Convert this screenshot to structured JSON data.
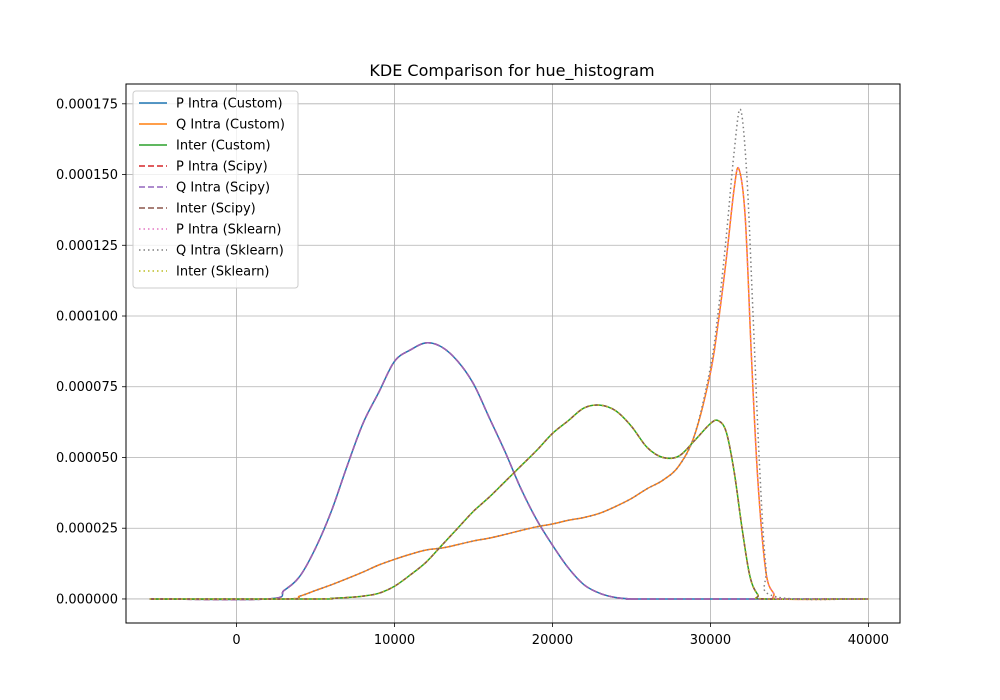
{
  "chart_data": {
    "type": "line",
    "title": "KDE Comparison for hue_histogram",
    "xlabel": "",
    "ylabel": "",
    "xlim": [
      -7000,
      42000
    ],
    "ylim": [
      -8.5e-06,
      0.000182
    ],
    "xticks": [
      0,
      10000,
      20000,
      30000,
      40000
    ],
    "xtick_labels": [
      "0",
      "10000",
      "20000",
      "30000",
      "40000"
    ],
    "yticks": [
      0,
      2.5e-05,
      5e-05,
      7.5e-05,
      0.0001,
      0.000125,
      0.00015,
      0.000175
    ],
    "ytick_labels": [
      "0.000000",
      "0.000025",
      "0.000050",
      "0.000075",
      "0.000100",
      "0.000125",
      "0.000150",
      "0.000175"
    ],
    "grid": true,
    "legend_position": "top-left",
    "series": [
      {
        "name": "P Intra (Custom)",
        "color": "#1f77b4",
        "style": "solid",
        "x": [
          -5500,
          2000,
          3000,
          4000,
          5000,
          6000,
          7000,
          8000,
          9000,
          10000,
          11000,
          12000,
          13000,
          14000,
          15000,
          16000,
          17000,
          18000,
          19000,
          20000,
          21000,
          22000,
          23000,
          24000,
          25000,
          26000,
          40000
        ],
        "y": [
          0,
          0,
          3e-06,
          8e-06,
          1.8e-05,
          3.1e-05,
          4.7e-05,
          6.2e-05,
          7.3e-05,
          8.4e-05,
          8.8e-05,
          9.05e-05,
          8.9e-05,
          8.4e-05,
          7.6e-05,
          6.4e-05,
          5.2e-05,
          3.9e-05,
          2.8e-05,
          1.9e-05,
          1.1e-05,
          5e-06,
          2e-06,
          5e-07,
          0,
          0,
          0
        ]
      },
      {
        "name": "Q Intra (Custom)",
        "color": "#ff7f0e",
        "style": "solid",
        "x": [
          -5500,
          3000,
          4000,
          5000,
          6000,
          7000,
          8000,
          9000,
          10000,
          11000,
          12000,
          13000,
          14000,
          15000,
          16000,
          17000,
          18000,
          19000,
          20000,
          21000,
          22000,
          23000,
          24000,
          25000,
          26000,
          27000,
          28000,
          29000,
          30000,
          30500,
          31000,
          31500,
          31800,
          32200,
          32600,
          33000,
          33500,
          34000,
          34500,
          40000
        ],
        "y": [
          0,
          0,
          1e-06,
          3e-06,
          5e-06,
          7.2e-06,
          9.5e-06,
          1.2e-05,
          1.4e-05,
          1.58e-05,
          1.73e-05,
          1.8e-05,
          1.92e-05,
          2.05e-05,
          2.15e-05,
          2.28e-05,
          2.42e-05,
          2.55e-05,
          2.65e-05,
          2.78e-05,
          2.88e-05,
          3.03e-05,
          3.27e-05,
          3.55e-05,
          3.9e-05,
          4.2e-05,
          4.7e-05,
          5.8e-05,
          8e-05,
          9.8e-05,
          0.00012,
          0.000145,
          0.000152,
          0.000135,
          8.5e-05,
          4.2e-05,
          1e-05,
          2e-06,
          0,
          0
        ]
      },
      {
        "name": "Inter (Custom)",
        "color": "#2ca02c",
        "style": "solid",
        "x": [
          -5500,
          5000,
          6000,
          7000,
          8000,
          9000,
          10000,
          11000,
          12000,
          13000,
          14000,
          15000,
          16000,
          17000,
          18000,
          19000,
          20000,
          21000,
          22000,
          23000,
          24000,
          25000,
          26000,
          27000,
          28000,
          29000,
          30000,
          30500,
          31000,
          31500,
          32000,
          32500,
          33000,
          33500,
          40000
        ],
        "y": [
          0,
          0,
          2e-07,
          5e-07,
          1e-06,
          2e-06,
          4.5e-06,
          8.5e-06,
          1.3e-05,
          1.9e-05,
          2.5e-05,
          3.1e-05,
          3.6e-05,
          4.15e-05,
          4.7e-05,
          5.25e-05,
          5.85e-05,
          6.3e-05,
          6.75e-05,
          6.85e-05,
          6.65e-05,
          6.1e-05,
          5.35e-05,
          5e-05,
          5.05e-05,
          5.6e-05,
          6.2e-05,
          6.3e-05,
          5.9e-05,
          4.5e-05,
          2.5e-05,
          8e-06,
          1.5e-06,
          0,
          0
        ]
      },
      {
        "name": "P Intra (Scipy)",
        "color": "#d62728",
        "style": "dashed",
        "same_as": 0
      },
      {
        "name": "Q Intra (Scipy)",
        "color": "#9467bd",
        "style": "dashed",
        "same_as": 0
      },
      {
        "name": "Inter (Scipy)",
        "color": "#8c564b",
        "style": "dashed",
        "same_as": 2
      },
      {
        "name": "P Intra (Sklearn)",
        "color": "#e377c2",
        "style": "dotted",
        "same_as": 1
      },
      {
        "name": "Q Intra (Sklearn)",
        "color": "#7f7f7f",
        "style": "dotted",
        "x": [
          -5500,
          3000,
          4000,
          5000,
          6000,
          7000,
          8000,
          9000,
          10000,
          11000,
          12000,
          13000,
          14000,
          15000,
          16000,
          17000,
          18000,
          19000,
          20000,
          21000,
          22000,
          23000,
          24000,
          25000,
          26000,
          27000,
          28000,
          29000,
          30000,
          30500,
          31000,
          31500,
          31900,
          32300,
          32700,
          33100,
          33500,
          34000,
          40000
        ],
        "y": [
          0,
          0,
          1e-06,
          3e-06,
          5e-06,
          7.2e-06,
          9.5e-06,
          1.2e-05,
          1.4e-05,
          1.58e-05,
          1.73e-05,
          1.8e-05,
          1.92e-05,
          2.05e-05,
          2.15e-05,
          2.28e-05,
          2.42e-05,
          2.55e-05,
          2.65e-05,
          2.78e-05,
          2.88e-05,
          3.03e-05,
          3.27e-05,
          3.55e-05,
          3.9e-05,
          4.2e-05,
          4.7e-05,
          5.8e-05,
          8.2e-05,
          0.000102,
          0.000128,
          0.000158,
          0.000173,
          0.00015,
          0.0001,
          4.8e-05,
          1.2e-05,
          1e-06,
          0
        ]
      },
      {
        "name": "Inter (Sklearn)",
        "color": "#bcbd22",
        "style": "dotted",
        "same_as": 2
      }
    ]
  }
}
